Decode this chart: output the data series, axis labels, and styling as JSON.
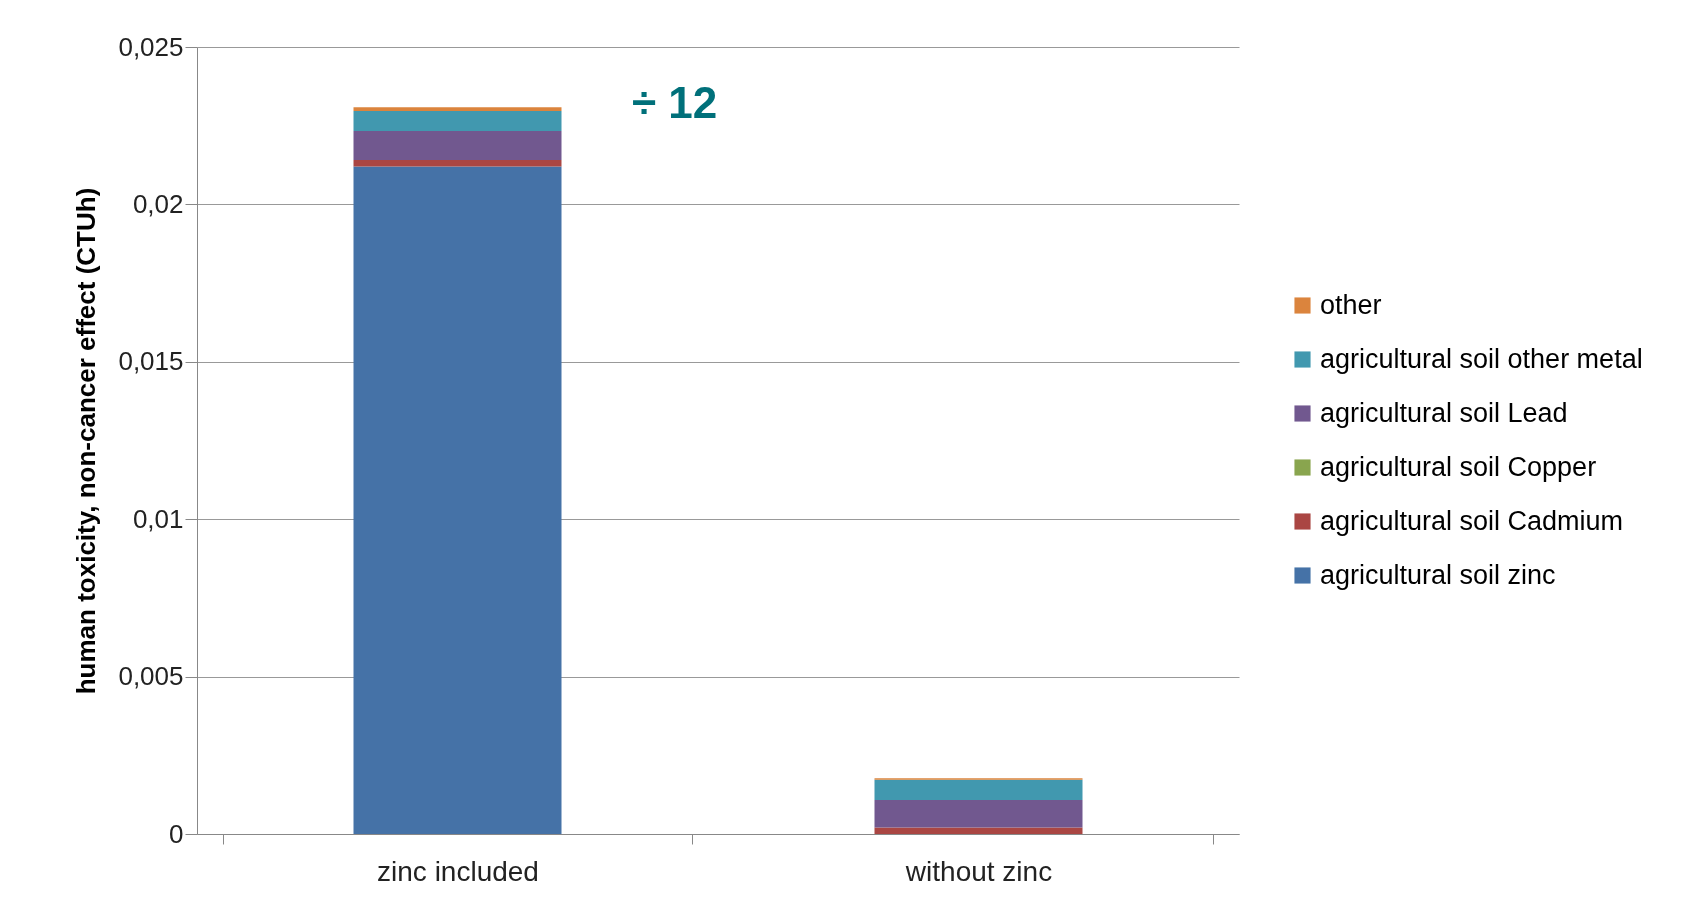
{
  "chart_data": {
    "type": "bar",
    "stacked": true,
    "ylabel": "human toxicity, non-cancer effect (CTUh)",
    "categories": [
      "zinc included",
      "without zinc"
    ],
    "series": [
      {
        "name": "agricultural soil zinc",
        "color": "#4572a7",
        "values": [
          0.0212,
          0
        ]
      },
      {
        "name": "agricultural soil Cadmium",
        "color": "#aa4643",
        "values": [
          0.00021,
          0.00021
        ]
      },
      {
        "name": "agricultural soil Copper",
        "color": "#89a54e",
        "values": [
          0,
          0
        ]
      },
      {
        "name": "agricultural soil Lead",
        "color": "#71588f",
        "values": [
          0.00092,
          0.00087
        ]
      },
      {
        "name": "agricultural soil other metal",
        "color": "#4198af",
        "values": [
          0.00064,
          0.00064
        ]
      },
      {
        "name": "other",
        "color": "#db843d",
        "values": [
          0.00012,
          5e-05
        ]
      }
    ],
    "ylim": [
      0,
      0.025
    ],
    "yticks": [
      {
        "value": 0,
        "label": "0"
      },
      {
        "value": 0.005,
        "label": "0,005"
      },
      {
        "value": 0.01,
        "label": "0,01"
      },
      {
        "value": 0.015,
        "label": "0,015"
      },
      {
        "value": 0.02,
        "label": "0,02"
      },
      {
        "value": 0.025,
        "label": "0,025"
      }
    ],
    "grid": "y",
    "legend": "right",
    "annotations": [
      "÷ 12"
    ]
  }
}
